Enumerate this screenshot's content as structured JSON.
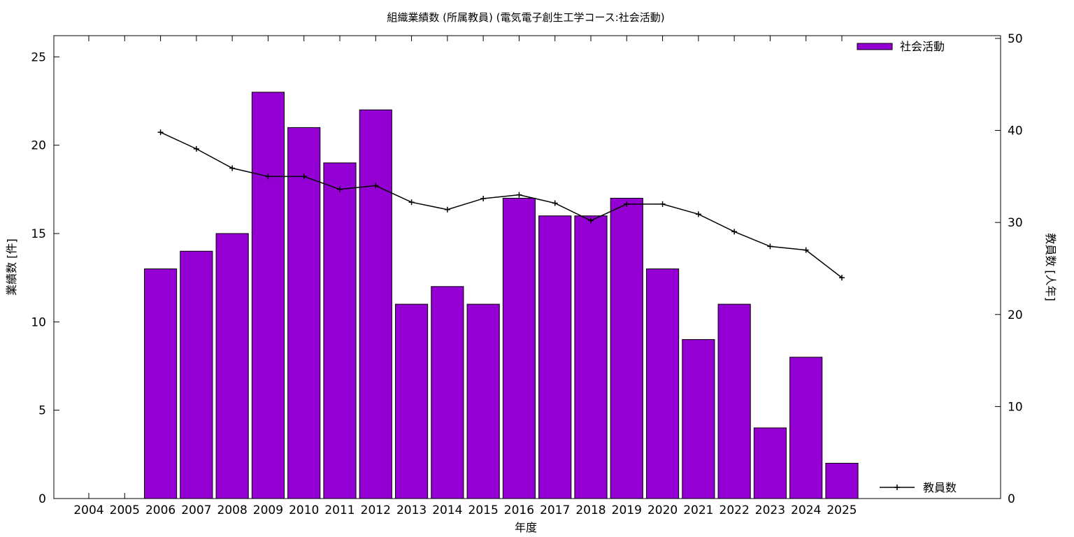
{
  "chart_data": {
    "type": "bar",
    "title": "組織業績数 (所属教員) (電気電子創生工学コース:社会活動)",
    "xlabel": "年度",
    "ylabel": "業績数 [件]",
    "y2label": "教員数 [人年]",
    "categories": [
      "2004",
      "2005",
      "2006",
      "2007",
      "2008",
      "2009",
      "2010",
      "2011",
      "2012",
      "2013",
      "2014",
      "2015",
      "2016",
      "2017",
      "2018",
      "2019",
      "2020",
      "2021",
      "2022",
      "2023",
      "2024",
      "2025"
    ],
    "series": [
      {
        "name": "社会活動",
        "kind": "bar",
        "axis": "left",
        "color": "#9400d3",
        "values": [
          null,
          null,
          13,
          14,
          15,
          23,
          21,
          19,
          22,
          11,
          12,
          11,
          17,
          16,
          16,
          17,
          13,
          9,
          11,
          4,
          8,
          2
        ]
      },
      {
        "name": "教員数",
        "kind": "line",
        "axis": "right",
        "color": "#000000",
        "values": [
          null,
          null,
          39.8,
          38.0,
          35.9,
          35.0,
          35.0,
          33.6,
          34.0,
          32.2,
          31.4,
          32.6,
          33.0,
          32.1,
          30.2,
          32.0,
          32.0,
          30.9,
          29.0,
          27.4,
          27.0,
          24.0
        ]
      }
    ],
    "ylim": [
      0,
      26.2
    ],
    "y2lim": [
      0,
      50.3
    ],
    "yticks": [
      0,
      5,
      10,
      15,
      20,
      25
    ],
    "y2ticks": [
      0,
      10,
      20,
      30,
      40,
      50
    ],
    "grid": false,
    "legend_placement": [
      "top-right",
      "bottom-right"
    ]
  }
}
